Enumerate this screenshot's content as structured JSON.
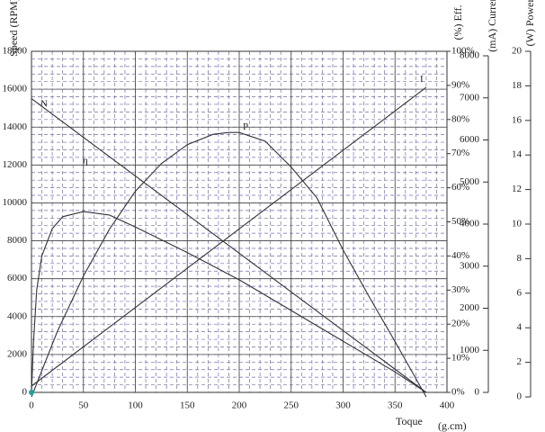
{
  "chart_data": {
    "type": "line",
    "xlabel": "Toque",
    "xunit": "(g.cm)",
    "ylabel": "Speed (RPM)",
    "y2label": "(%) Eff.",
    "y3label": "(mA) Current",
    "y4label": "(W) Power",
    "xlim": [
      0,
      400
    ],
    "xticks": [
      0,
      50,
      100,
      150,
      200,
      250,
      300,
      350,
      400
    ],
    "ylim": [
      0,
      18000
    ],
    "yticks": [
      0,
      2000,
      4000,
      6000,
      8000,
      10000,
      12000,
      14000,
      16000,
      18000
    ],
    "y2lim": [
      0,
      100
    ],
    "y2ticks": [
      {
        "value": 0,
        "label": "0%"
      },
      {
        "value": 10,
        "label": "10%"
      },
      {
        "value": 20,
        "label": "20%"
      },
      {
        "value": 30,
        "label": "30%"
      },
      {
        "value": 40,
        "label": "40%"
      },
      {
        "value": 50,
        "label": "50%"
      },
      {
        "value": 60,
        "label": "60%"
      },
      {
        "value": 70,
        "label": "70%"
      },
      {
        "value": 80,
        "label": "80%"
      },
      {
        "value": 90,
        "label": "90%"
      },
      {
        "value": 100,
        "label": "100%"
      }
    ],
    "y3lim": [
      0,
      8000
    ],
    "y3ticks": [
      0,
      1000,
      2000,
      3000,
      4000,
      5000,
      6000,
      7000,
      8000
    ],
    "y4lim": [
      0,
      20
    ],
    "y4ticks": [
      0,
      2,
      4,
      6,
      8,
      10,
      12,
      14,
      16,
      18,
      20
    ],
    "grid": true,
    "series": [
      {
        "name": "N",
        "axis": "y",
        "color": "#333333",
        "x": [
          0,
          380
        ],
        "values": [
          15500,
          0
        ]
      },
      {
        "name": "η",
        "axis": "y2",
        "color": "#333333",
        "x": [
          0,
          2,
          5,
          10,
          20,
          30,
          50,
          75,
          100,
          150,
          200,
          250,
          300,
          350,
          380
        ],
        "values": [
          0,
          15,
          30,
          40,
          48,
          51.5,
          53,
          52,
          48.5,
          41,
          33,
          24,
          15,
          6,
          0
        ]
      },
      {
        "name": "P",
        "axis": "y4",
        "color": "#333333",
        "x": [
          0,
          25,
          50,
          75,
          100,
          125,
          150,
          175,
          190,
          200,
          225,
          250,
          275,
          300,
          325,
          350,
          380
        ],
        "values": [
          0,
          3.8,
          7.0,
          9.7,
          11.9,
          13.5,
          14.6,
          15.2,
          15.3,
          15.3,
          14.8,
          13.3,
          11.5,
          8.5,
          5.8,
          3.2,
          0
        ]
      },
      {
        "name": "I",
        "axis": "y3",
        "color": "#333333",
        "x": [
          0,
          380
        ],
        "values": [
          150,
          7250
        ]
      }
    ]
  }
}
